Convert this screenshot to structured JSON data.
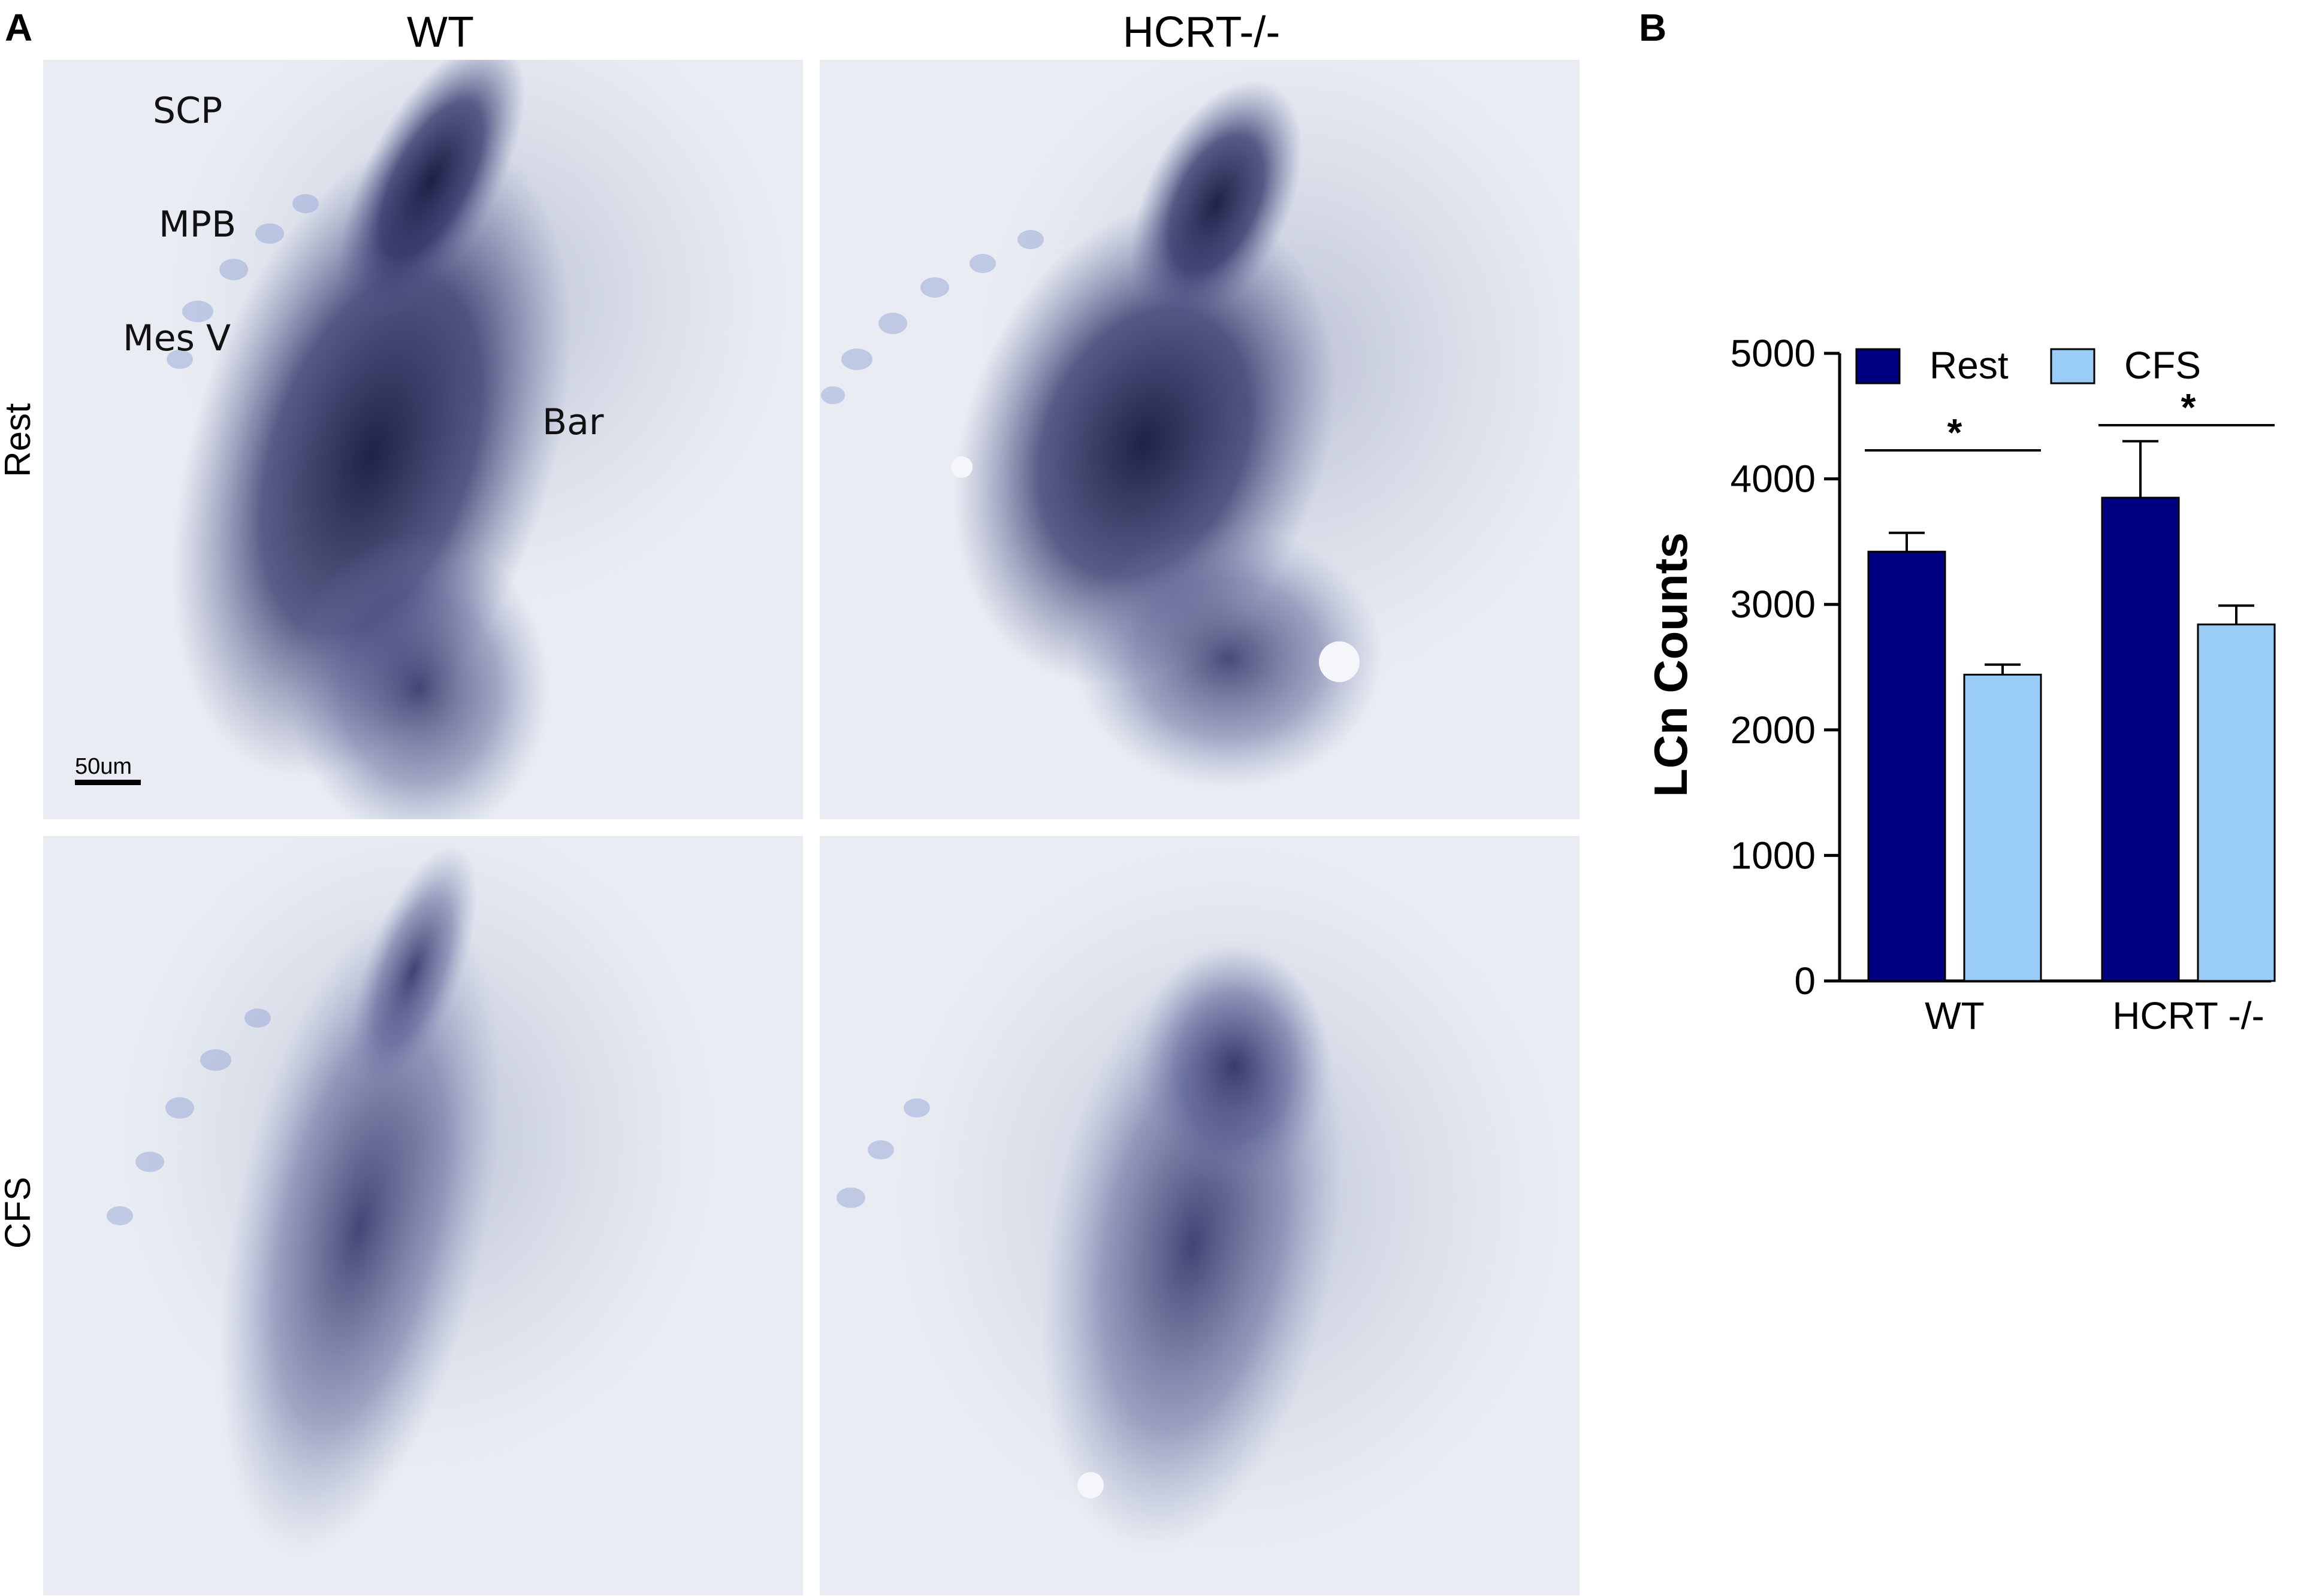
{
  "panel_a": {
    "letter": "A",
    "columns": [
      "WT",
      "HCRT-/-"
    ],
    "rows": [
      "Rest",
      "CFS"
    ],
    "annotations": [
      "SCP",
      "MPB",
      "Mes V",
      "Bar"
    ],
    "scale_bar": "50um",
    "colors": {
      "stain": "#1b1d4a",
      "background": "#e9edf3",
      "nissl": "#8f9fd4"
    }
  },
  "panel_b": {
    "letter": "B",
    "significance": [
      "*",
      "*"
    ]
  },
  "chart_data": {
    "type": "bar",
    "categories": [
      "WT",
      "HCRT -/-"
    ],
    "series": [
      {
        "name": "Rest",
        "values": [
          3420,
          3850
        ],
        "errors": [
          150,
          450
        ],
        "color": "#000080"
      },
      {
        "name": "CFS",
        "values": [
          2440,
          2840
        ],
        "errors": [
          80,
          150
        ],
        "color": "#99ccf7"
      }
    ],
    "ylabel": "LCn Counts",
    "ylim": [
      0,
      5000
    ],
    "yticks": [
      0,
      1000,
      2000,
      3000,
      4000,
      5000
    ],
    "legend": "top",
    "grid": false
  }
}
